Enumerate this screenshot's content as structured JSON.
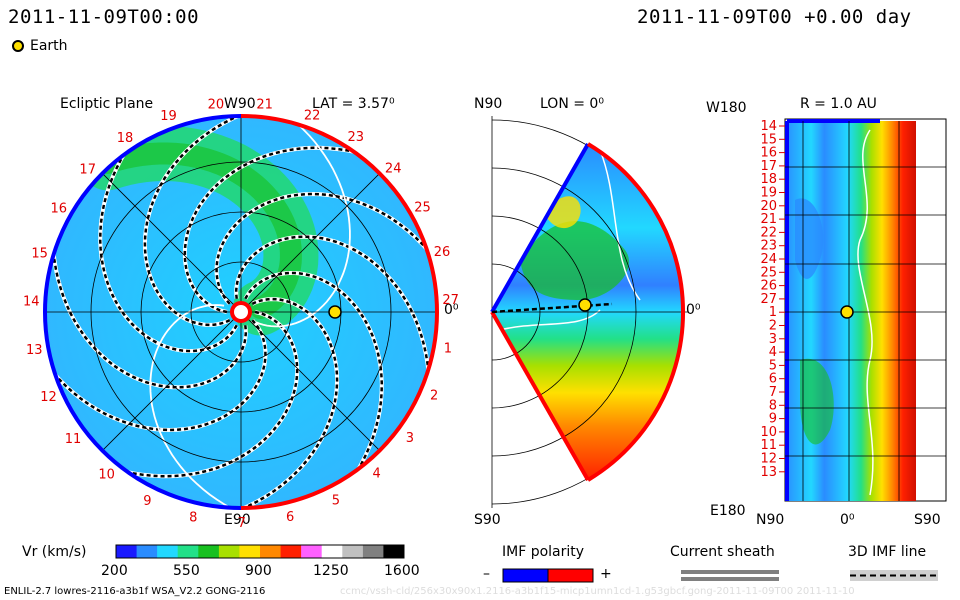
{
  "header": {
    "datetime_left": "2011-11-09T00:00",
    "datetime_right": "2011-11-09T00 +0.00 day",
    "legend_label": "Earth"
  },
  "ecliptic": {
    "title": "Ecliptic Plane",
    "top_label": "W90",
    "bottom_label": "E90",
    "zero_label": "0⁰",
    "lat_label": "LAT = 3.57⁰",
    "ticks": [
      "20",
      "21",
      "22",
      "23",
      "24",
      "25",
      "26",
      "27",
      "1",
      "2",
      "3",
      "4",
      "5",
      "6",
      "7",
      "8",
      "9",
      "10",
      "11",
      "12",
      "13",
      "14",
      "15",
      "16",
      "17",
      "18",
      "19"
    ]
  },
  "meridional": {
    "top_label": "N90",
    "bottom_label": "S90",
    "lon_label": "LON = 0⁰",
    "zero_label": "0⁰"
  },
  "radial": {
    "title": "R = 1.0 AU",
    "top_left_label": "W180",
    "bottom_left_label": "E180",
    "x_labels": [
      "N90",
      "0⁰",
      "S90"
    ],
    "y_ticks": [
      "14",
      "15",
      "16",
      "17",
      "18",
      "19",
      "20",
      "21",
      "22",
      "23",
      "24",
      "25",
      "26",
      "27",
      "1",
      "2",
      "3",
      "4",
      "5",
      "6",
      "7",
      "8",
      "9",
      "10",
      "11",
      "12",
      "13"
    ]
  },
  "colorbar": {
    "label": "Vr (km/s)",
    "ticks": [
      "200",
      "550",
      "900",
      "1250",
      "1600"
    ],
    "colors": [
      "#1a1aff",
      "#2a8cff",
      "#22d8ff",
      "#22e088",
      "#18c020",
      "#a8e000",
      "#ffe000",
      "#ff8800",
      "#ff2000",
      "#ff60ff",
      "#ffffff",
      "#c0c0c0",
      "#808080",
      "#000000"
    ]
  },
  "imf": {
    "label": "IMF polarity",
    "minus": "–",
    "plus": "+",
    "minus_color": "#0000ff",
    "plus_color": "#ff0000"
  },
  "sheath": {
    "label": "Current sheath"
  },
  "imf_line": {
    "label": "3D IMF line"
  },
  "footer": {
    "model_text": "ENLIL-2.7 lowres-2116-a3b1f WSA_V2.2 GONG-2116",
    "watermark": "ccmc/vssh-cld/256x30x90x1.2116-a3b1f15-micp1umn1cd-1.g53gbcf.gong-2011-11-09T00    2011-11-10"
  }
}
